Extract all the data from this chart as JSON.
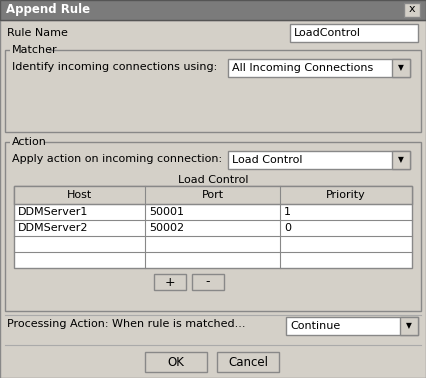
{
  "title": "Append Rule",
  "close_button": "x",
  "rule_name_label": "Rule Name",
  "rule_name_value": "LoadControl",
  "matcher_label": "Matcher",
  "matcher_question": "Identify incoming connections using:",
  "matcher_dropdown": "All Incoming Connections",
  "action_label": "Action",
  "action_question": "Apply action on incoming connection:",
  "action_dropdown": "Load Control",
  "table_title": "Load Control",
  "table_headers": [
    "Host",
    "Port",
    "Priority"
  ],
  "table_rows": [
    [
      "DDMServer1",
      "50001",
      "1"
    ],
    [
      "DDMServer2",
      "50002",
      "0"
    ]
  ],
  "processing_label": "Processing Action: When rule is matched...",
  "processing_dropdown": "Continue",
  "ok_button": "OK",
  "cancel_button": "Cancel",
  "bg_color": "#d4d0c8",
  "title_bar_color": "#7b7b7b",
  "white": "#ffffff",
  "text_color": "#000000",
  "title_text_color": "#ffffff"
}
